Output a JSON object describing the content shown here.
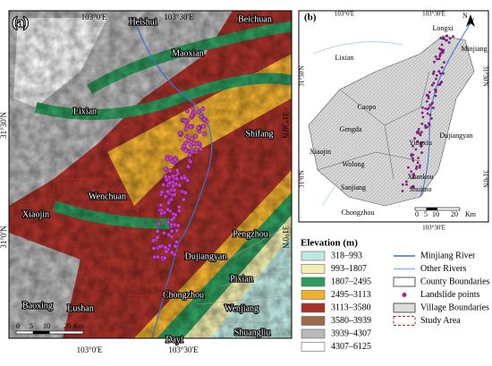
{
  "panels": [
    {
      "label": "(a)",
      "top_ticks": [
        "103°0'E",
        "103°30'E"
      ],
      "bottom_ticks": [
        "103°0'E",
        "103°30'E"
      ],
      "left_ticks": [
        "31°30'N",
        "31°0'N"
      ],
      "right_ticks": [
        "31°30'N",
        "31°0'N"
      ],
      "places": [
        "Heishui",
        "Beichuan",
        "Maoxian",
        "Lixian",
        "Shifang",
        "Wenchuan",
        "Xiaojin",
        "Pengzhou",
        "Dujiangyan",
        "Pixian",
        "Chongzhou",
        "Wenjiang",
        "Dayi",
        "Shuangliu",
        "Baoxing",
        "Lushan"
      ],
      "scale": [
        "0",
        "5",
        "10",
        "20",
        "Km"
      ]
    },
    {
      "label": "(b)",
      "top_ticks": [
        "103°0'E",
        "103°30'E"
      ],
      "bottom_ticks": [
        "103°30'E"
      ],
      "left_ticks": [
        "31°30'N",
        "31°0'N"
      ],
      "right_ticks": [
        "31°30'N",
        "31°0'N"
      ],
      "places": [
        "Longxi",
        "Minjiang",
        "Lixian",
        "Caopo",
        "Gengda",
        "Yingxiu",
        "Dujiangyan",
        "Xiaojin",
        "Wolong",
        "Sanjiang",
        "Chongzhou",
        "Shuimo",
        "Xuankou"
      ],
      "north": "N",
      "scale": [
        "0",
        "5",
        "10",
        "20",
        "Km"
      ]
    }
  ],
  "elevation_legend": {
    "title": "Elevation (m)",
    "classes": [
      {
        "label": "318–993",
        "color": "#bfe8e2"
      },
      {
        "label": "993–1807",
        "color": "#f5f0b0"
      },
      {
        "label": "1807–2495",
        "color": "#2e9a5c"
      },
      {
        "label": "2495–3113",
        "color": "#f0b030"
      },
      {
        "label": "3113–3580",
        "color": "#a8322a"
      },
      {
        "label": "3580–3939",
        "color": "#9a6a4a"
      },
      {
        "label": "3939–4307",
        "color": "#b8b8b8"
      },
      {
        "label": "4307–6125",
        "color": "#ffffff"
      }
    ]
  },
  "layer_legend": [
    "Minjiang River",
    "Other Rivers",
    "County Boundaries",
    "Landslide points",
    "Village Boundaries",
    "Study Area"
  ]
}
